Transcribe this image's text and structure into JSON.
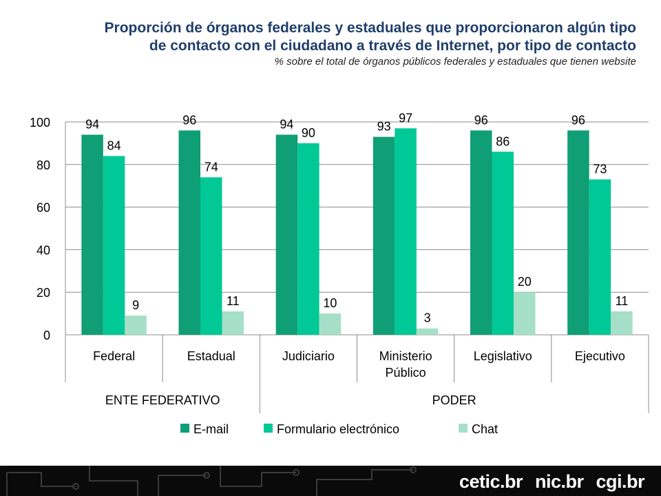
{
  "colors": {
    "email": "#0f9e76",
    "form": "#00c896",
    "chat": "#a6dfc8",
    "title": "#1f3e6b"
  },
  "chart_data": {
    "type": "bar",
    "title": "Proporción de órganos federales y estaduales que proporcionaron algún tipo de contacto con el ciudadano a través de Internet, por tipo de contacto",
    "subtitle": "% sobre el total de órganos públicos federales y estaduales que tienen website",
    "categories": [
      "Federal",
      "Estadual",
      "Judiciario",
      "Ministerio Público",
      "Legislativo",
      "Ejecutivo"
    ],
    "category_lines": [
      [
        "Federal"
      ],
      [
        "Estadual"
      ],
      [
        "Judiciario"
      ],
      [
        "Ministerio",
        "Público"
      ],
      [
        "Legislativo"
      ],
      [
        "Ejecutivo"
      ]
    ],
    "groups": [
      {
        "label": "ENTE FEDERATIVO",
        "categories": [
          "Federal",
          "Estadual"
        ]
      },
      {
        "label": "PODER",
        "categories": [
          "Judiciario",
          "Ministerio Público",
          "Legislativo",
          "Ejecutivo"
        ]
      }
    ],
    "series": [
      {
        "name": "E-mail",
        "values": [
          94,
          96,
          94,
          93,
          96,
          96
        ]
      },
      {
        "name": "Formulario electrónico",
        "values": [
          84,
          74,
          90,
          97,
          86,
          73
        ]
      },
      {
        "name": "Chat",
        "values": [
          9,
          11,
          10,
          3,
          20,
          11
        ]
      }
    ],
    "ylim": [
      0,
      100
    ],
    "yticks": [
      0,
      20,
      40,
      60,
      80,
      100
    ],
    "grid": true,
    "legend": "bottom"
  },
  "footer": {
    "logos": [
      "cetic.br",
      "nic.br",
      "cgi.br"
    ]
  }
}
